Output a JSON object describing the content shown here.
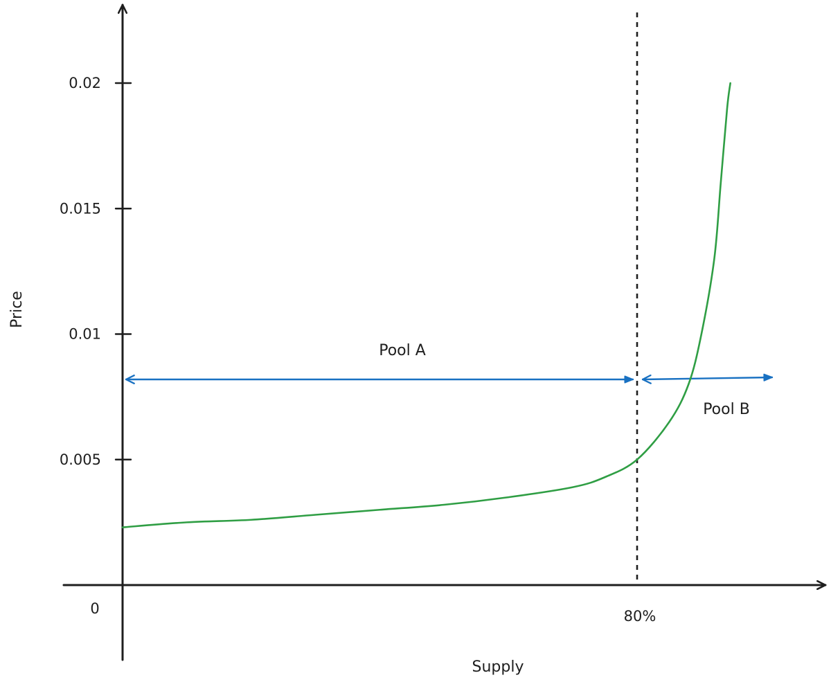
{
  "chart_data": {
    "type": "line",
    "title": "",
    "xlabel": "Supply",
    "ylabel": "Price",
    "x_origin_label": "0",
    "x_tick_labels": [
      {
        "x": 0.8,
        "label": "80%"
      }
    ],
    "y_ticks": [
      {
        "value": 0.02,
        "label": "0.02"
      },
      {
        "value": 0.015,
        "label": "0.015"
      },
      {
        "value": 0.01,
        "label": "0.01"
      },
      {
        "value": 0.005,
        "label": "0.005"
      }
    ],
    "xlim": [
      0,
      1.27
    ],
    "ylim": [
      -0.00335,
      0.0235
    ],
    "grid": false,
    "series": [
      {
        "color": "#2f9e44",
        "x": [
          0.0,
          0.1,
          0.2,
          0.3,
          0.4,
          0.5,
          0.6,
          0.7,
          0.75,
          0.8,
          0.85,
          0.88,
          0.9,
          0.92,
          0.93,
          0.94,
          0.945
        ],
        "y": [
          0.0023,
          0.0025,
          0.0026,
          0.0028,
          0.003,
          0.0032,
          0.0035,
          0.0039,
          0.0043,
          0.005,
          0.0065,
          0.008,
          0.01,
          0.013,
          0.016,
          0.019,
          0.02
        ]
      }
    ],
    "threshold": {
      "x": 0.8,
      "style": "dashed",
      "color": "#1e1e1e"
    },
    "ranges": [
      {
        "name": "Pool A",
        "from": 0.0,
        "to": 0.8,
        "level": 0.0093,
        "color": "#1971c2"
      },
      {
        "name": "Pool B",
        "from": 0.8,
        "to": 1.27,
        "level": 0.0093,
        "color": "#1971c2"
      }
    ]
  }
}
